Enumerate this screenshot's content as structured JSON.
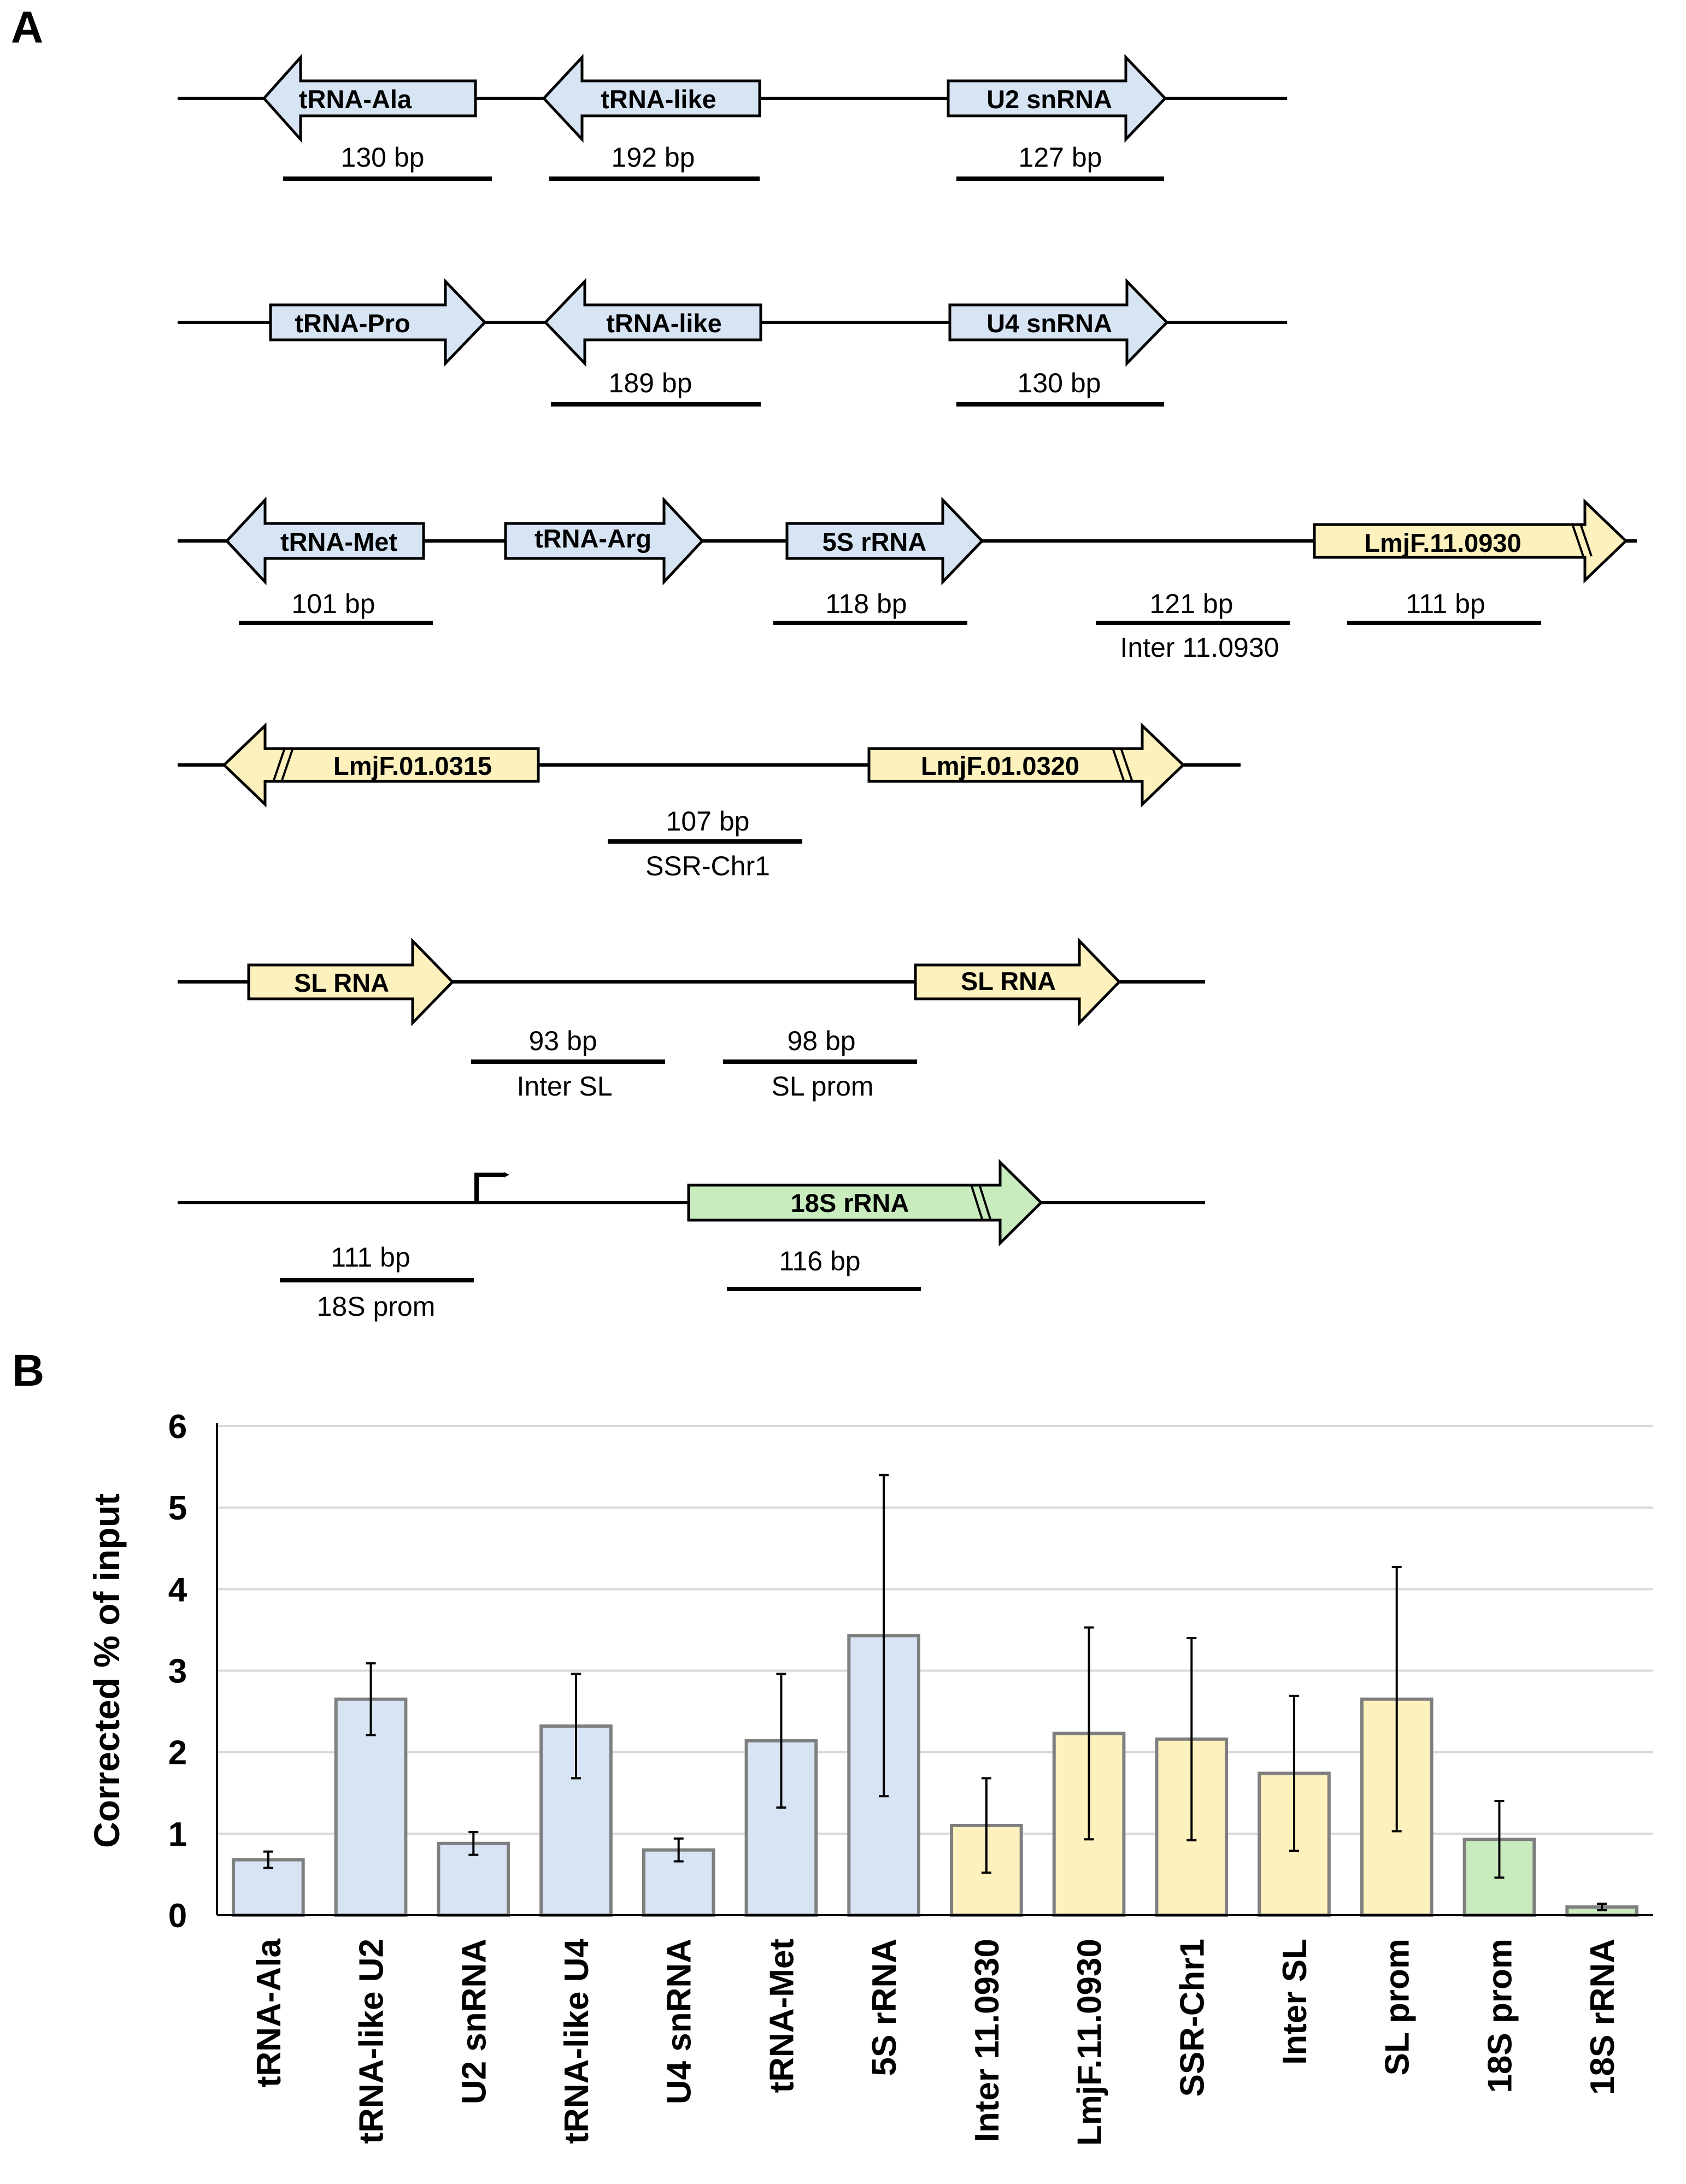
{
  "panel_a": {
    "letter": "A",
    "colors": {
      "blue": "#d6e4f4",
      "yellow": "#fdf1bd",
      "green": "#c9ecbf"
    },
    "rows": [
      {
        "features": [
          {
            "label": "tRNA-Ala",
            "dir": "left",
            "color": "blue"
          },
          {
            "label": "tRNA-like",
            "dir": "left",
            "color": "blue"
          },
          {
            "label": "U2 snRNA",
            "dir": "right",
            "color": "blue"
          }
        ],
        "amplicons": [
          {
            "size": "130 bp",
            "name": ""
          },
          {
            "size": "192 bp",
            "name": ""
          },
          {
            "size": "127 bp",
            "name": ""
          }
        ]
      },
      {
        "features": [
          {
            "label": "tRNA-Pro",
            "dir": "right",
            "color": "blue"
          },
          {
            "label": "tRNA-like",
            "dir": "left",
            "color": "blue"
          },
          {
            "label": "U4 snRNA",
            "dir": "right",
            "color": "blue"
          }
        ],
        "amplicons": [
          {
            "size": "189 bp",
            "name": ""
          },
          {
            "size": "130 bp",
            "name": ""
          }
        ]
      },
      {
        "features": [
          {
            "label": "tRNA-Met",
            "dir": "left",
            "color": "blue"
          },
          {
            "label": "tRNA-Arg",
            "dir": "right",
            "color": "blue"
          },
          {
            "label": "5S rRNA",
            "dir": "right",
            "color": "blue"
          },
          {
            "label": "LmjF.11.0930",
            "dir": "right",
            "color": "yellow"
          }
        ],
        "amplicons": [
          {
            "size": "101 bp",
            "name": ""
          },
          {
            "size": "118 bp",
            "name": ""
          },
          {
            "size": "121 bp",
            "name": "Inter 11.0930"
          },
          {
            "size": "111 bp",
            "name": ""
          }
        ]
      },
      {
        "features": [
          {
            "label": "LmjF.01.0315",
            "dir": "left",
            "color": "yellow"
          },
          {
            "label": "LmjF.01.0320",
            "dir": "right",
            "color": "yellow"
          }
        ],
        "amplicons": [
          {
            "size": "107 bp",
            "name": "SSR-Chr1"
          }
        ]
      },
      {
        "features": [
          {
            "label": "SL RNA",
            "dir": "right",
            "color": "yellow"
          },
          {
            "label": "SL RNA",
            "dir": "right",
            "color": "yellow"
          }
        ],
        "amplicons": [
          {
            "size": "93 bp",
            "name": "Inter SL"
          },
          {
            "size": "98 bp",
            "name": "SL prom"
          }
        ]
      },
      {
        "features": [
          {
            "label": "18S rRNA",
            "dir": "right",
            "color": "green"
          }
        ],
        "amplicons": [
          {
            "size": "111 bp",
            "name": "18S prom"
          },
          {
            "size": "116 bp",
            "name": ""
          }
        ]
      }
    ]
  },
  "panel_b": {
    "letter": "B"
  },
  "chart_data": {
    "type": "bar",
    "ylabel": "Corrected % of input",
    "xlabel": "",
    "ylim": [
      0,
      6
    ],
    "yticks": [
      0,
      1,
      2,
      3,
      4,
      5,
      6
    ],
    "grid": true,
    "categories": [
      "tRNA-Ala",
      "tRNA-like U2",
      "U2 snRNA",
      "tRNA-like U4",
      "U4 snRNA",
      "tRNA-Met",
      "5S rRNA",
      "Inter 11.0930",
      "LmjF.11.0930",
      "SSR-Chr1",
      "Inter SL",
      "SL prom",
      "18S prom",
      "18S rRNA"
    ],
    "values": [
      0.68,
      2.65,
      0.88,
      2.32,
      0.8,
      2.14,
      3.43,
      1.1,
      2.23,
      2.16,
      1.74,
      2.65,
      0.93,
      0.1
    ],
    "errors": [
      0.1,
      0.44,
      0.14,
      0.64,
      0.14,
      0.82,
      1.97,
      0.58,
      1.3,
      1.24,
      0.95,
      1.62,
      0.47,
      0.04
    ],
    "bar_colors": [
      "#d6e4f4",
      "#d6e4f4",
      "#d6e4f4",
      "#d6e4f4",
      "#d6e4f4",
      "#d6e4f4",
      "#d6e4f4",
      "#fdf1bd",
      "#fdf1bd",
      "#fdf1bd",
      "#fdf1bd",
      "#fdf1bd",
      "#c9ecbf",
      "#c9ecbf"
    ],
    "bar_stroke": "#7f7f7f",
    "grid_color": "#d9d9d9"
  }
}
